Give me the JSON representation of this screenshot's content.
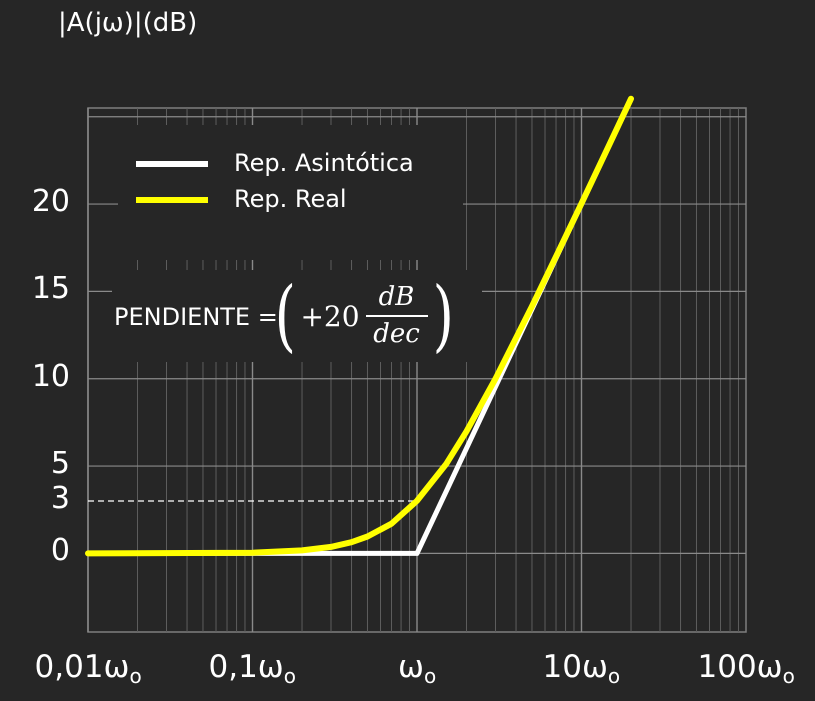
{
  "chart_data": {
    "type": "line",
    "ylabel": "|A(jω)|(dB)",
    "xscale": "log",
    "x_ticks": [
      {
        "value": 0.01,
        "label": "0,01ω",
        "sub": "o"
      },
      {
        "value": 0.1,
        "label": "0,1ω",
        "sub": "o"
      },
      {
        "value": 1,
        "label": "ω",
        "sub": "o"
      },
      {
        "value": 10,
        "label": "10ω",
        "sub": "o"
      },
      {
        "value": 100,
        "label": "100ω",
        "sub": "o"
      }
    ],
    "y_ticks": [
      0,
      3,
      5,
      10,
      15,
      20
    ],
    "y_tick_labels": [
      "0",
      "3",
      "5",
      "10",
      "15",
      "20"
    ],
    "xlim": [
      0.01,
      100
    ],
    "ylim": [
      -4.5,
      25.5
    ],
    "grid": true,
    "series": [
      {
        "name": "Rep. Asintótica",
        "color": "#ffffff",
        "x": [
          0.01,
          0.1,
          1,
          10,
          20
        ],
        "y": [
          0,
          0,
          0,
          20,
          26
        ]
      },
      {
        "name": "Rep. Real",
        "color": "#ffff00",
        "x": [
          0.01,
          0.1,
          0.2,
          0.3,
          0.4,
          0.5,
          0.7,
          1,
          1.5,
          2,
          3,
          5,
          7,
          10,
          15,
          20
        ],
        "y": [
          0,
          0.04,
          0.17,
          0.37,
          0.64,
          0.97,
          1.7,
          3.01,
          5.1,
          6.99,
          10,
          14.15,
          16.99,
          20.04,
          23.54,
          26.03
        ]
      }
    ],
    "reference_line": {
      "y": 3,
      "x_end": 1,
      "style": "dashed"
    },
    "annotation": {
      "label": "PENDIENTE =",
      "coefficient": "+20",
      "numerator": "dB",
      "denominator": "dec"
    },
    "legend_placement": "top-left"
  }
}
